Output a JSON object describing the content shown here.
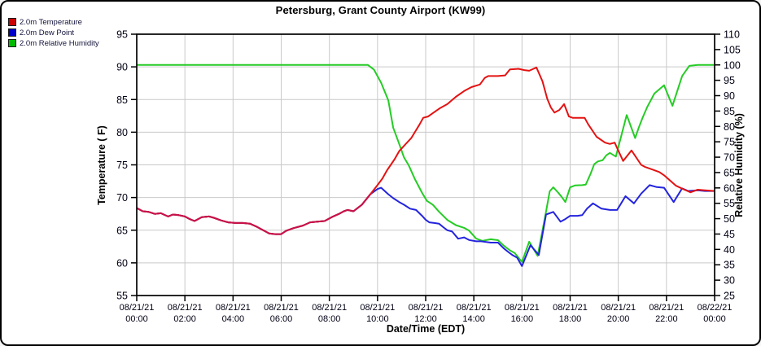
{
  "title": "Petersburg, Grant County Airport (KW99)",
  "legend": {
    "items": [
      {
        "label": "2.0m Temperature",
        "color": "#cc0000"
      },
      {
        "label": "2.0m Dew Point",
        "color": "#0000cc"
      },
      {
        "label": "2.0m Relative Humidity",
        "color": "#00bb00"
      }
    ]
  },
  "chart_data": {
    "type": "line",
    "title": "Petersburg, Grant County Airport (KW99)",
    "xlabel": "Date/Time (EDT)",
    "ylabel_left": "Temperature ( F)",
    "ylabel_right": "Relative Humidity (%)",
    "x_range_hours": [
      0,
      24
    ],
    "ylim_left": [
      55,
      95
    ],
    "ylim_right": [
      25,
      110
    ],
    "grid": true,
    "legend_position": "top-left",
    "y_ticks_left": [
      55,
      60,
      65,
      70,
      75,
      80,
      85,
      90,
      95
    ],
    "y_ticks_right": [
      25,
      30,
      35,
      40,
      45,
      50,
      55,
      60,
      65,
      70,
      75,
      80,
      85,
      90,
      95,
      100,
      105,
      110
    ],
    "x_ticks": [
      {
        "hour": 0,
        "date": "08/21/21",
        "time": "00:00"
      },
      {
        "hour": 2,
        "date": "08/21/21",
        "time": "02:00"
      },
      {
        "hour": 4,
        "date": "08/21/21",
        "time": "04:00"
      },
      {
        "hour": 6,
        "date": "08/21/21",
        "time": "06:00"
      },
      {
        "hour": 8,
        "date": "08/21/21",
        "time": "08:00"
      },
      {
        "hour": 10,
        "date": "08/21/21",
        "time": "10:00"
      },
      {
        "hour": 12,
        "date": "08/21/21",
        "time": "12:00"
      },
      {
        "hour": 14,
        "date": "08/21/21",
        "time": "14:00"
      },
      {
        "hour": 16,
        "date": "08/21/21",
        "time": "16:00"
      },
      {
        "hour": 18,
        "date": "08/21/21",
        "time": "18:00"
      },
      {
        "hour": 20,
        "date": "08/21/21",
        "time": "20:00"
      },
      {
        "hour": 22,
        "date": "08/21/21",
        "time": "22:00"
      },
      {
        "hour": 24,
        "date": "08/22/21",
        "time": "00:00"
      }
    ],
    "style": {
      "temperature": "#e41212",
      "dew_point": "#2424dd",
      "humidity": "#25cc25",
      "overlap": "#c81248",
      "grid": "#c9c9c9",
      "axis": "#000000",
      "tick_text": "#000014"
    },
    "series": [
      {
        "name": "2.0m Temperature",
        "axis": "left",
        "units": "F",
        "color": "#e41212",
        "points": [
          [
            0.0,
            68.4
          ],
          [
            0.25,
            67.9
          ],
          [
            0.5,
            67.8
          ],
          [
            0.75,
            67.5
          ],
          [
            1.0,
            67.6
          ],
          [
            1.3,
            67.1
          ],
          [
            1.5,
            67.4
          ],
          [
            1.75,
            67.3
          ],
          [
            2.0,
            67.1
          ],
          [
            2.2,
            66.7
          ],
          [
            2.4,
            66.4
          ],
          [
            2.7,
            67.0
          ],
          [
            3.0,
            67.1
          ],
          [
            3.2,
            66.9
          ],
          [
            3.5,
            66.5
          ],
          [
            3.8,
            66.2
          ],
          [
            4.1,
            66.1
          ],
          [
            4.4,
            66.1
          ],
          [
            4.7,
            66.0
          ],
          [
            5.0,
            65.5
          ],
          [
            5.25,
            65.0
          ],
          [
            5.5,
            64.5
          ],
          [
            5.75,
            64.4
          ],
          [
            6.0,
            64.4
          ],
          [
            6.2,
            64.9
          ],
          [
            6.5,
            65.3
          ],
          [
            6.9,
            65.7
          ],
          [
            7.2,
            66.2
          ],
          [
            7.5,
            66.3
          ],
          [
            7.8,
            66.4
          ],
          [
            8.1,
            67.0
          ],
          [
            8.4,
            67.5
          ],
          [
            8.6,
            67.9
          ],
          [
            8.75,
            68.1
          ],
          [
            9.0,
            67.9
          ],
          [
            9.35,
            68.9
          ],
          [
            9.7,
            70.5
          ],
          [
            10.0,
            71.9
          ],
          [
            10.2,
            72.9
          ],
          [
            10.4,
            74.2
          ],
          [
            10.55,
            75.0
          ],
          [
            10.7,
            75.8
          ],
          [
            10.9,
            77.1
          ],
          [
            11.05,
            77.7
          ],
          [
            11.2,
            78.3
          ],
          [
            11.4,
            79.1
          ],
          [
            11.55,
            80.0
          ],
          [
            11.75,
            81.2
          ],
          [
            11.9,
            82.2
          ],
          [
            12.1,
            82.4
          ],
          [
            12.25,
            82.8
          ],
          [
            12.6,
            83.7
          ],
          [
            12.9,
            84.3
          ],
          [
            13.25,
            85.4
          ],
          [
            13.6,
            86.3
          ],
          [
            13.9,
            86.9
          ],
          [
            14.25,
            87.3
          ],
          [
            14.45,
            88.3
          ],
          [
            14.6,
            88.6
          ],
          [
            15.0,
            88.6
          ],
          [
            15.3,
            88.7
          ],
          [
            15.5,
            89.6
          ],
          [
            15.85,
            89.7
          ],
          [
            16.1,
            89.5
          ],
          [
            16.3,
            89.4
          ],
          [
            16.6,
            89.9
          ],
          [
            16.85,
            87.8
          ],
          [
            17.05,
            85.1
          ],
          [
            17.2,
            83.8
          ],
          [
            17.35,
            83.0
          ],
          [
            17.55,
            83.4
          ],
          [
            17.75,
            84.3
          ],
          [
            17.95,
            82.4
          ],
          [
            18.1,
            82.2
          ],
          [
            18.4,
            82.2
          ],
          [
            18.6,
            82.2
          ],
          [
            18.75,
            81.2
          ],
          [
            19.1,
            79.3
          ],
          [
            19.45,
            78.4
          ],
          [
            19.65,
            78.2
          ],
          [
            19.85,
            78.4
          ],
          [
            20.2,
            75.6
          ],
          [
            20.55,
            77.2
          ],
          [
            20.95,
            75.0
          ],
          [
            21.1,
            74.7
          ],
          [
            21.4,
            74.3
          ],
          [
            21.7,
            73.9
          ],
          [
            21.9,
            73.4
          ],
          [
            22.15,
            72.6
          ],
          [
            22.4,
            71.8
          ],
          [
            22.75,
            71.2
          ],
          [
            23.0,
            70.8
          ],
          [
            23.3,
            71.2
          ],
          [
            23.6,
            71.1
          ],
          [
            24.0,
            71.0
          ]
        ]
      },
      {
        "name": "2.0m Dew Point",
        "axis": "left",
        "units": "F",
        "color": "#2424dd",
        "points": [
          [
            0.0,
            68.4
          ],
          [
            0.25,
            67.9
          ],
          [
            0.5,
            67.8
          ],
          [
            0.75,
            67.5
          ],
          [
            1.0,
            67.6
          ],
          [
            1.3,
            67.1
          ],
          [
            1.5,
            67.4
          ],
          [
            1.75,
            67.3
          ],
          [
            2.0,
            67.1
          ],
          [
            2.2,
            66.7
          ],
          [
            2.4,
            66.4
          ],
          [
            2.7,
            67.0
          ],
          [
            3.0,
            67.1
          ],
          [
            3.2,
            66.9
          ],
          [
            3.5,
            66.5
          ],
          [
            3.8,
            66.2
          ],
          [
            4.1,
            66.1
          ],
          [
            4.4,
            66.1
          ],
          [
            4.7,
            66.0
          ],
          [
            5.0,
            65.5
          ],
          [
            5.25,
            65.0
          ],
          [
            5.5,
            64.5
          ],
          [
            5.75,
            64.4
          ],
          [
            6.0,
            64.4
          ],
          [
            6.2,
            64.9
          ],
          [
            6.5,
            65.3
          ],
          [
            6.9,
            65.7
          ],
          [
            7.2,
            66.2
          ],
          [
            7.5,
            66.3
          ],
          [
            7.8,
            66.4
          ],
          [
            8.1,
            67.0
          ],
          [
            8.4,
            67.5
          ],
          [
            8.6,
            67.9
          ],
          [
            8.75,
            68.1
          ],
          [
            9.0,
            67.9
          ],
          [
            9.35,
            68.9
          ],
          [
            9.7,
            70.5
          ],
          [
            10.0,
            71.3
          ],
          [
            10.15,
            71.5
          ],
          [
            10.45,
            70.5
          ],
          [
            10.65,
            69.9
          ],
          [
            10.9,
            69.3
          ],
          [
            11.1,
            68.9
          ],
          [
            11.35,
            68.3
          ],
          [
            11.6,
            68.1
          ],
          [
            11.85,
            67.2
          ],
          [
            12.0,
            66.6
          ],
          [
            12.15,
            66.2
          ],
          [
            12.35,
            66.1
          ],
          [
            12.55,
            66.0
          ],
          [
            12.75,
            65.4
          ],
          [
            12.9,
            65.0
          ],
          [
            13.1,
            64.8
          ],
          [
            13.35,
            63.7
          ],
          [
            13.6,
            63.9
          ],
          [
            13.8,
            63.5
          ],
          [
            14.1,
            63.3
          ],
          [
            14.3,
            63.3
          ],
          [
            14.7,
            63.1
          ],
          [
            15.0,
            63.1
          ],
          [
            15.25,
            62.2
          ],
          [
            15.45,
            61.6
          ],
          [
            15.6,
            61.2
          ],
          [
            15.8,
            60.8
          ],
          [
            16.0,
            59.5
          ],
          [
            16.35,
            62.7
          ],
          [
            16.7,
            61.2
          ],
          [
            17.0,
            67.4
          ],
          [
            17.3,
            67.8
          ],
          [
            17.6,
            66.3
          ],
          [
            17.8,
            66.7
          ],
          [
            18.0,
            67.2
          ],
          [
            18.3,
            67.2
          ],
          [
            18.5,
            67.3
          ],
          [
            18.7,
            68.3
          ],
          [
            18.95,
            69.1
          ],
          [
            19.3,
            68.3
          ],
          [
            19.65,
            68.1
          ],
          [
            19.95,
            68.1
          ],
          [
            20.3,
            70.2
          ],
          [
            20.65,
            69.1
          ],
          [
            20.95,
            70.6
          ],
          [
            21.3,
            71.9
          ],
          [
            21.6,
            71.6
          ],
          [
            21.9,
            71.5
          ],
          [
            22.3,
            69.3
          ],
          [
            22.65,
            71.4
          ],
          [
            22.9,
            71.0
          ],
          [
            23.3,
            71.1
          ],
          [
            23.6,
            71.0
          ],
          [
            24.0,
            71.0
          ]
        ]
      },
      {
        "name": "2.0m Relative Humidity",
        "axis": "right",
        "units": "%",
        "color": "#25cc25",
        "points": [
          [
            0.0,
            100
          ],
          [
            2.0,
            100
          ],
          [
            4.0,
            100
          ],
          [
            6.0,
            100
          ],
          [
            8.0,
            100
          ],
          [
            9.6,
            100
          ],
          [
            9.85,
            98.5
          ],
          [
            10.15,
            94.2
          ],
          [
            10.45,
            88.5
          ],
          [
            10.65,
            79.6
          ],
          [
            10.9,
            74.3
          ],
          [
            11.1,
            69.9
          ],
          [
            11.3,
            67.3
          ],
          [
            11.55,
            62.9
          ],
          [
            11.85,
            58.4
          ],
          [
            12.05,
            55.8
          ],
          [
            12.3,
            54.5
          ],
          [
            12.55,
            52.3
          ],
          [
            12.9,
            49.6
          ],
          [
            13.25,
            47.9
          ],
          [
            13.6,
            47.0
          ],
          [
            13.8,
            46.1
          ],
          [
            14.1,
            43.5
          ],
          [
            14.35,
            42.8
          ],
          [
            14.7,
            43.3
          ],
          [
            15.0,
            43.0
          ],
          [
            15.25,
            41.2
          ],
          [
            15.5,
            39.7
          ],
          [
            15.7,
            38.8
          ],
          [
            16.0,
            35.9
          ],
          [
            16.3,
            42.5
          ],
          [
            16.65,
            37.9
          ],
          [
            17.0,
            52.3
          ],
          [
            17.15,
            58.9
          ],
          [
            17.3,
            60.2
          ],
          [
            17.5,
            58.5
          ],
          [
            17.65,
            57.1
          ],
          [
            17.8,
            55.4
          ],
          [
            18.0,
            60.2
          ],
          [
            18.2,
            60.8
          ],
          [
            18.5,
            60.9
          ],
          [
            18.65,
            61.1
          ],
          [
            18.85,
            64.6
          ],
          [
            19.0,
            67.7
          ],
          [
            19.15,
            68.6
          ],
          [
            19.35,
            69.0
          ],
          [
            19.5,
            70.6
          ],
          [
            19.65,
            71.4
          ],
          [
            19.9,
            70.2
          ],
          [
            20.35,
            83.7
          ],
          [
            20.7,
            76.2
          ],
          [
            20.85,
            79.6
          ],
          [
            21.0,
            82.7
          ],
          [
            21.2,
            86.3
          ],
          [
            21.35,
            88.5
          ],
          [
            21.5,
            90.7
          ],
          [
            21.9,
            93.4
          ],
          [
            22.25,
            86.7
          ],
          [
            22.65,
            96.4
          ],
          [
            22.95,
            99.7
          ],
          [
            23.3,
            100.0
          ],
          [
            24.0,
            100.0
          ]
        ]
      }
    ]
  }
}
